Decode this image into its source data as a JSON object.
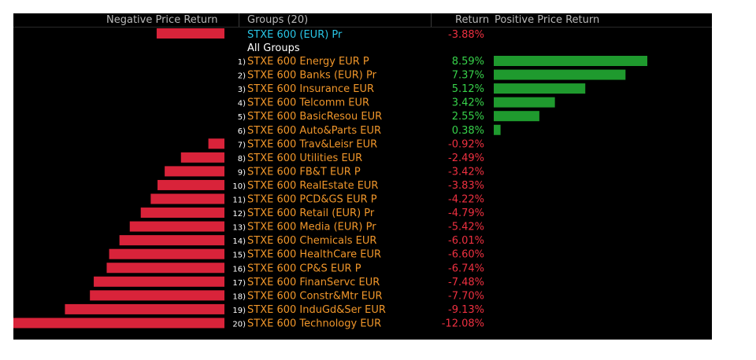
{
  "header": {
    "negative_label": "Negative Price Return",
    "groups_label": "Groups (20)",
    "return_label": "Return",
    "positive_label": "Positive Price Return"
  },
  "benchmark": {
    "name": "STXE 600 (EUR) Pr",
    "value": -3.88,
    "display": "-3.88%"
  },
  "section_label": "All Groups",
  "colors": {
    "negative_bar": "#d9233a",
    "positive_bar": "#1f9a2e",
    "group_text": "#f0962a",
    "benchmark_text": "#29c6e6",
    "section_text": "#ffffff",
    "positive_text": "#37d24a",
    "negative_text": "#ee3040",
    "header_text": "#b9b9b9",
    "index_text": "#ffffff"
  },
  "chart_data": {
    "type": "bar",
    "title": "",
    "xlabel": "",
    "ylabel": "",
    "orientation": "horizontal-diverging",
    "ylim": [
      -12.08,
      8.59
    ],
    "categories": [
      "STXE 600 Energy EUR P",
      "STXE 600 Banks (EUR) Pr",
      "STXE 600 Insurance EUR",
      "STXE 600 Telcomm EUR",
      "STXE 600 BasicResou EUR",
      "STXE 600 Auto&Parts EUR",
      "STXE 600 Trav&Leisr EUR",
      "STXE 600 Utilities EUR",
      "STXE 600 FB&T EUR P",
      "STXE 600 RealEstate EUR",
      "STXE 600 PCD&GS EUR P",
      "STXE 600 Retail (EUR) Pr",
      "STXE 600 Media (EUR) Pr",
      "STXE 600 Chemicals EUR",
      "STXE 600 HealthCare EUR",
      "STXE 600 CP&S EUR P",
      "STXE 600 FinanServc EUR",
      "STXE 600 Constr&Mtr EUR",
      "STXE 600 InduGd&Ser EUR",
      "STXE 600 Technology EUR"
    ],
    "ranks": [
      "1)",
      "2)",
      "3)",
      "4)",
      "5)",
      "6)",
      "7)",
      "8)",
      "9)",
      "10)",
      "11)",
      "12)",
      "13)",
      "14)",
      "15)",
      "16)",
      "17)",
      "18)",
      "19)",
      "20)"
    ],
    "values": [
      8.59,
      7.37,
      5.12,
      3.42,
      2.55,
      0.38,
      -0.92,
      -2.49,
      -3.42,
      -3.83,
      -4.22,
      -4.79,
      -5.42,
      -6.01,
      -6.6,
      -6.74,
      -7.48,
      -7.7,
      -9.13,
      -12.08
    ],
    "value_labels": [
      "8.59%",
      "7.37%",
      "5.12%",
      "3.42%",
      "2.55%",
      "0.38%",
      "-0.92%",
      "-2.49%",
      "-3.42%",
      "-3.83%",
      "-4.22%",
      "-4.79%",
      "-5.42%",
      "-6.01%",
      "-6.60%",
      "-6.74%",
      "-7.48%",
      "-7.70%",
      "-9.13%",
      "-12.08%"
    ]
  }
}
